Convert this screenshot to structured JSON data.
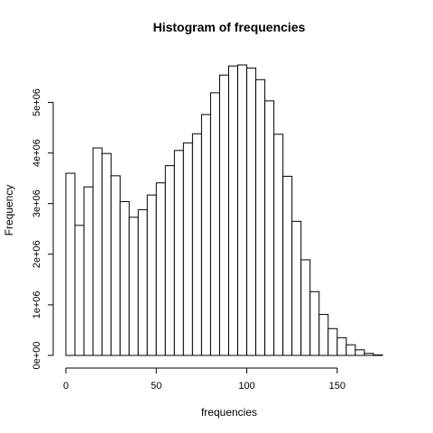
{
  "chart_data": {
    "type": "bar",
    "title": "Histogram of frequencies",
    "xlabel": "frequencies",
    "ylabel": "Frequency",
    "bin_width": 5,
    "bin_start": 0,
    "values": [
      3600000,
      2570000,
      3330000,
      4100000,
      3990000,
      3550000,
      3040000,
      2730000,
      2880000,
      3170000,
      3410000,
      3750000,
      4050000,
      4200000,
      4380000,
      4760000,
      5190000,
      5540000,
      5720000,
      5740000,
      5680000,
      5450000,
      5030000,
      4370000,
      3540000,
      2650000,
      1890000,
      1260000,
      810000,
      530000,
      350000,
      210000,
      110000,
      40000,
      10000,
      0
    ],
    "x_ticks": [
      0,
      50,
      100,
      150
    ],
    "x_tick_labels": [
      "0",
      "50",
      "100",
      "150"
    ],
    "y_ticks": [
      0,
      1000000,
      2000000,
      3000000,
      4000000,
      5000000
    ],
    "y_tick_labels": [
      "0e+00",
      "1e+06",
      "2e+06",
      "3e+06",
      "4e+06",
      "5e+06"
    ],
    "xlim": [
      0,
      180
    ],
    "ylim": [
      0,
      5740000
    ],
    "grid": false
  }
}
